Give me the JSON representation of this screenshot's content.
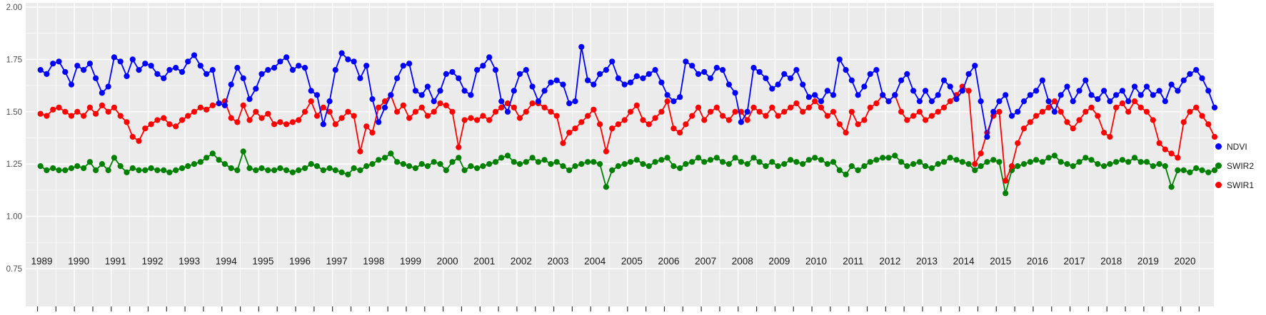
{
  "chart_data": {
    "type": "line",
    "markers": true,
    "title": "",
    "xlabel": "",
    "ylabel": "",
    "panel_bg": "#ebebeb",
    "grid_color": "#ffffff",
    "x_domain": [
      1988.68,
      2020.9
    ],
    "ylim": [
      0.62,
      2.02
    ],
    "y_axis": {
      "tick_values": [
        2.0,
        1.75,
        1.5,
        1.25,
        1.0,
        0.75
      ],
      "tick_labels": [
        "2.00",
        "1.75",
        "1.50",
        "1.25",
        "1.00",
        "0.75"
      ]
    },
    "x_axis": {
      "years": [
        1989,
        1990,
        1991,
        1992,
        1993,
        1994,
        1995,
        1996,
        1997,
        1998,
        1999,
        2000,
        2001,
        2002,
        2003,
        2004,
        2005,
        2006,
        2007,
        2008,
        2009,
        2010,
        2011,
        2012,
        2013,
        2014,
        2015,
        2016,
        2017,
        2018,
        2019,
        2020
      ]
    },
    "sample_fractions": [
      0.08,
      0.25,
      0.42,
      0.58,
      0.75,
      0.92
    ],
    "legend": {
      "position": "right",
      "labels": [
        "NDVI",
        "SWIR2",
        "SWIR1"
      ]
    },
    "series": [
      {
        "name": "NDVI",
        "color": "#0000ff",
        "values_by_year": [
          [
            1.7,
            1.68,
            1.73,
            1.74,
            1.69,
            1.63
          ],
          [
            1.72,
            1.7,
            1.73,
            1.66,
            1.59,
            1.62
          ],
          [
            1.76,
            1.74,
            1.67,
            1.75,
            1.7,
            1.73
          ],
          [
            1.72,
            1.68,
            1.66,
            1.7,
            1.71,
            1.69
          ],
          [
            1.74,
            1.77,
            1.72,
            1.68,
            1.7,
            1.54
          ],
          [
            1.53,
            1.63,
            1.71,
            1.66,
            1.56,
            1.61
          ],
          [
            1.68,
            1.7,
            1.71,
            1.74,
            1.76,
            1.7
          ],
          [
            1.72,
            1.71,
            1.6,
            1.58,
            1.44,
            1.55
          ],
          [
            1.7,
            1.78,
            1.75,
            1.74,
            1.66,
            1.72
          ],
          [
            1.56,
            1.45,
            1.52,
            1.58,
            1.66,
            1.72
          ],
          [
            1.73,
            1.6,
            1.58,
            1.62,
            1.55,
            1.6
          ],
          [
            1.68,
            1.69,
            1.66,
            1.6,
            1.58,
            1.7
          ],
          [
            1.72,
            1.76,
            1.7,
            1.55,
            1.5,
            1.6
          ],
          [
            1.68,
            1.7,
            1.62,
            1.55,
            1.6,
            1.64
          ],
          [
            1.65,
            1.63,
            1.54,
            1.55,
            1.81,
            1.65
          ],
          [
            1.63,
            1.68,
            1.7,
            1.74,
            1.66,
            1.63
          ],
          [
            1.64,
            1.67,
            1.66,
            1.68,
            1.7,
            1.64
          ],
          [
            1.58,
            1.55,
            1.57,
            1.74,
            1.72,
            1.68
          ],
          [
            1.69,
            1.66,
            1.71,
            1.7,
            1.63,
            1.59
          ],
          [
            1.45,
            1.5,
            1.71,
            1.69,
            1.66,
            1.61
          ],
          [
            1.63,
            1.68,
            1.66,
            1.7,
            1.63,
            1.57
          ],
          [
            1.58,
            1.55,
            1.6,
            1.58,
            1.75,
            1.7
          ],
          [
            1.65,
            1.58,
            1.62,
            1.68,
            1.7,
            1.58
          ],
          [
            1.55,
            1.58,
            1.65,
            1.68,
            1.6,
            1.55
          ],
          [
            1.6,
            1.55,
            1.58,
            1.65,
            1.62,
            1.56
          ],
          [
            1.6,
            1.68,
            1.72,
            1.55,
            1.38,
            1.5
          ],
          [
            1.55,
            1.58,
            1.48,
            1.5,
            1.55,
            1.58
          ],
          [
            1.6,
            1.65,
            1.55,
            1.5,
            1.58,
            1.62
          ],
          [
            1.55,
            1.6,
            1.65,
            1.58,
            1.56,
            1.6
          ],
          [
            1.55,
            1.58,
            1.6,
            1.55,
            1.62,
            1.58
          ],
          [
            1.62,
            1.58,
            1.6,
            1.55,
            1.63,
            1.6
          ],
          [
            1.65,
            1.68,
            1.7,
            1.66,
            1.6,
            1.52
          ]
        ]
      },
      {
        "name": "SWIR2",
        "color": "#008000",
        "values_by_year": [
          [
            1.24,
            1.22,
            1.23,
            1.22,
            1.22,
            1.23
          ],
          [
            1.24,
            1.23,
            1.26,
            1.22,
            1.25,
            1.22
          ],
          [
            1.28,
            1.24,
            1.21,
            1.23,
            1.22,
            1.22
          ],
          [
            1.23,
            1.22,
            1.22,
            1.21,
            1.22,
            1.23
          ],
          [
            1.24,
            1.25,
            1.26,
            1.28,
            1.3,
            1.27
          ],
          [
            1.25,
            1.23,
            1.22,
            1.31,
            1.23,
            1.22
          ],
          [
            1.23,
            1.22,
            1.22,
            1.23,
            1.22,
            1.21
          ],
          [
            1.22,
            1.23,
            1.25,
            1.24,
            1.22,
            1.23
          ],
          [
            1.22,
            1.21,
            1.2,
            1.23,
            1.22,
            1.24
          ],
          [
            1.25,
            1.27,
            1.28,
            1.3,
            1.26,
            1.25
          ],
          [
            1.24,
            1.23,
            1.25,
            1.24,
            1.26,
            1.25
          ],
          [
            1.22,
            1.26,
            1.28,
            1.22,
            1.24,
            1.23
          ],
          [
            1.24,
            1.25,
            1.26,
            1.28,
            1.29,
            1.26
          ],
          [
            1.25,
            1.26,
            1.28,
            1.26,
            1.27,
            1.25
          ],
          [
            1.26,
            1.24,
            1.22,
            1.24,
            1.25,
            1.26
          ],
          [
            1.26,
            1.25,
            1.14,
            1.22,
            1.24,
            1.25
          ],
          [
            1.26,
            1.27,
            1.25,
            1.24,
            1.26,
            1.27
          ],
          [
            1.28,
            1.24,
            1.23,
            1.25,
            1.26,
            1.28
          ],
          [
            1.26,
            1.27,
            1.28,
            1.26,
            1.25,
            1.28
          ],
          [
            1.26,
            1.25,
            1.28,
            1.26,
            1.24,
            1.26
          ],
          [
            1.24,
            1.25,
            1.27,
            1.26,
            1.25,
            1.27
          ],
          [
            1.28,
            1.27,
            1.25,
            1.26,
            1.22,
            1.2
          ],
          [
            1.24,
            1.22,
            1.24,
            1.26,
            1.27,
            1.28
          ],
          [
            1.28,
            1.29,
            1.26,
            1.24,
            1.25,
            1.26
          ],
          [
            1.24,
            1.23,
            1.25,
            1.26,
            1.28,
            1.27
          ],
          [
            1.26,
            1.25,
            1.22,
            1.24,
            1.26,
            1.27
          ],
          [
            1.26,
            1.11,
            1.22,
            1.24,
            1.25,
            1.26
          ],
          [
            1.27,
            1.26,
            1.28,
            1.29,
            1.26,
            1.25
          ],
          [
            1.24,
            1.26,
            1.28,
            1.27,
            1.25,
            1.24
          ],
          [
            1.25,
            1.26,
            1.27,
            1.26,
            1.28,
            1.26
          ],
          [
            1.26,
            1.24,
            1.25,
            1.24,
            1.14,
            1.22
          ],
          [
            1.22,
            1.21,
            1.23,
            1.22,
            1.21,
            1.22
          ]
        ]
      },
      {
        "name": "SWIR1",
        "color": "#ff0000",
        "values_by_year": [
          [
            1.49,
            1.48,
            1.51,
            1.52,
            1.5,
            1.48
          ],
          [
            1.5,
            1.48,
            1.52,
            1.49,
            1.53,
            1.5
          ],
          [
            1.52,
            1.48,
            1.45,
            1.38,
            1.36,
            1.42
          ],
          [
            1.44,
            1.46,
            1.47,
            1.44,
            1.43,
            1.46
          ],
          [
            1.48,
            1.5,
            1.52,
            1.51,
            1.53,
            1.54
          ],
          [
            1.55,
            1.47,
            1.45,
            1.53,
            1.46,
            1.5
          ],
          [
            1.47,
            1.49,
            1.44,
            1.45,
            1.44,
            1.45
          ],
          [
            1.46,
            1.5,
            1.55,
            1.48,
            1.52,
            1.5
          ],
          [
            1.44,
            1.47,
            1.5,
            1.48,
            1.31,
            1.43
          ],
          [
            1.4,
            1.52,
            1.55,
            1.58,
            1.5,
            1.53
          ],
          [
            1.47,
            1.5,
            1.52,
            1.48,
            1.5,
            1.54
          ],
          [
            1.53,
            1.5,
            1.33,
            1.46,
            1.47,
            1.46
          ],
          [
            1.48,
            1.46,
            1.5,
            1.52,
            1.54,
            1.52
          ],
          [
            1.47,
            1.5,
            1.54,
            1.54,
            1.52,
            1.5
          ],
          [
            1.48,
            1.35,
            1.4,
            1.42,
            1.45,
            1.48
          ],
          [
            1.51,
            1.44,
            1.31,
            1.42,
            1.44,
            1.46
          ],
          [
            1.5,
            1.53,
            1.46,
            1.44,
            1.47,
            1.5
          ],
          [
            1.55,
            1.42,
            1.4,
            1.44,
            1.48,
            1.52
          ],
          [
            1.46,
            1.5,
            1.52,
            1.48,
            1.46,
            1.5
          ],
          [
            1.5,
            1.46,
            1.52,
            1.5,
            1.48,
            1.52
          ],
          [
            1.48,
            1.5,
            1.52,
            1.54,
            1.5,
            1.52
          ],
          [
            1.55,
            1.52,
            1.48,
            1.5,
            1.44,
            1.4
          ],
          [
            1.5,
            1.44,
            1.46,
            1.52,
            1.54,
            1.58
          ],
          [
            1.55,
            1.58,
            1.5,
            1.46,
            1.48,
            1.5
          ],
          [
            1.46,
            1.48,
            1.5,
            1.52,
            1.55,
            1.58
          ],
          [
            1.62,
            1.6,
            1.25,
            1.3,
            1.4,
            1.48
          ],
          [
            1.5,
            1.17,
            1.24,
            1.35,
            1.42,
            1.45
          ],
          [
            1.48,
            1.5,
            1.52,
            1.55,
            1.5,
            1.45
          ],
          [
            1.42,
            1.46,
            1.5,
            1.52,
            1.48,
            1.4
          ],
          [
            1.38,
            1.52,
            1.54,
            1.5,
            1.55,
            1.52
          ],
          [
            1.5,
            1.46,
            1.35,
            1.32,
            1.3,
            1.28
          ],
          [
            1.45,
            1.5,
            1.52,
            1.48,
            1.44,
            1.38
          ]
        ]
      }
    ]
  }
}
